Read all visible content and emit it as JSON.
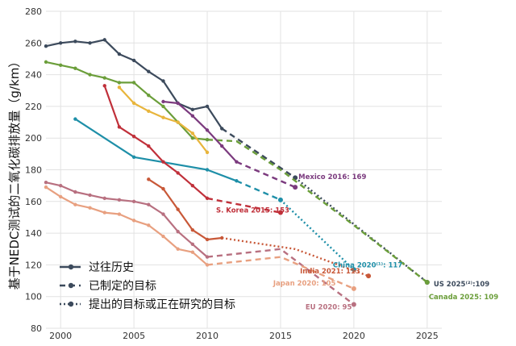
{
  "chart_data": {
    "type": "line",
    "ylabel": "基于NEDC测试的二氧化碳排放量（g/km）",
    "xlim": [
      1999,
      2026
    ],
    "ylim": [
      80,
      280
    ],
    "x_ticks": [
      2000,
      2005,
      2010,
      2015,
      2020,
      2025
    ],
    "y_ticks": [
      80,
      100,
      120,
      140,
      160,
      180,
      200,
      220,
      240,
      260,
      280
    ],
    "grid": true,
    "legend_position": "bottom-left",
    "legend": [
      {
        "label": "过往历史",
        "style": "solid"
      },
      {
        "label": "已制定的目标",
        "style": "dashed"
      },
      {
        "label": "提出的目标或正在研究的目标",
        "style": "dotted"
      }
    ],
    "series": [
      {
        "color": "#3c4a5c",
        "historical": [
          [
            1999,
            258
          ],
          [
            2000,
            260
          ],
          [
            2001,
            261
          ],
          [
            2002,
            260
          ],
          [
            2003,
            262
          ],
          [
            2004,
            253
          ],
          [
            2005,
            249
          ],
          [
            2006,
            242
          ],
          [
            2007,
            236
          ],
          [
            2008,
            222
          ],
          [
            2009,
            218
          ],
          [
            2010,
            220
          ],
          [
            2011,
            206
          ]
        ],
        "enacted": [
          [
            2011,
            206
          ],
          [
            2016,
            175
          ]
        ],
        "proposed": [
          [
            2016,
            175
          ],
          [
            2025,
            109
          ]
        ]
      },
      {
        "color": "#6b9e3a",
        "historical": [
          [
            1999,
            248
          ],
          [
            2000,
            246
          ],
          [
            2001,
            244
          ],
          [
            2002,
            240
          ],
          [
            2003,
            238
          ],
          [
            2004,
            235
          ],
          [
            2005,
            235
          ],
          [
            2006,
            227
          ],
          [
            2007,
            220
          ],
          [
            2008,
            210
          ],
          [
            2009,
            200
          ],
          [
            2010,
            199
          ]
        ],
        "enacted": [
          [
            2010,
            199
          ],
          [
            2012,
            198
          ],
          [
            2015,
            180
          ],
          [
            2020,
            145
          ],
          [
            2025,
            109
          ]
        ]
      },
      {
        "color": "#7b3a7e",
        "historical": [
          [
            2007,
            223
          ],
          [
            2008,
            222
          ],
          [
            2009,
            214
          ],
          [
            2010,
            205
          ],
          [
            2011,
            195
          ],
          [
            2012,
            185
          ]
        ],
        "enacted": [
          [
            2012,
            185
          ],
          [
            2016,
            169
          ]
        ]
      },
      {
        "color": "#e8b53c",
        "historical": [
          [
            2004,
            232
          ],
          [
            2005,
            222
          ],
          [
            2006,
            217
          ],
          [
            2007,
            213
          ],
          [
            2008,
            210
          ],
          [
            2009,
            203
          ],
          [
            2010,
            191
          ]
        ]
      },
      {
        "color": "#1e8fa8",
        "historical": [
          [
            2001,
            212
          ],
          [
            2005,
            188
          ],
          [
            2010,
            180
          ],
          [
            2012,
            173
          ]
        ],
        "enacted": [
          [
            2012,
            173
          ],
          [
            2015,
            161
          ]
        ],
        "proposed": [
          [
            2015,
            161
          ],
          [
            2020,
            117
          ]
        ]
      },
      {
        "color": "#c0303a",
        "historical": [
          [
            2003,
            233
          ],
          [
            2004,
            207
          ],
          [
            2005,
            201
          ],
          [
            2006,
            195
          ],
          [
            2007,
            185
          ],
          [
            2008,
            178
          ],
          [
            2009,
            170
          ],
          [
            2010,
            162
          ]
        ],
        "enacted": [
          [
            2010,
            162
          ],
          [
            2015,
            153
          ]
        ]
      },
      {
        "color": "#c85838",
        "historical": [
          [
            2006,
            174
          ],
          [
            2007,
            168
          ],
          [
            2008,
            155
          ],
          [
            2009,
            142
          ],
          [
            2010,
            136
          ],
          [
            2011,
            137
          ]
        ],
        "proposed": [
          [
            2011,
            137
          ],
          [
            2016,
            130
          ],
          [
            2021,
            113
          ]
        ]
      },
      {
        "color": "#b87080",
        "historical": [
          [
            1999,
            172
          ],
          [
            2000,
            170
          ],
          [
            2001,
            166
          ],
          [
            2002,
            164
          ],
          [
            2003,
            162
          ],
          [
            2004,
            161
          ],
          [
            2005,
            160
          ],
          [
            2006,
            158
          ],
          [
            2007,
            152
          ],
          [
            2008,
            141
          ],
          [
            2009,
            133
          ],
          [
            2010,
            125
          ]
        ],
        "enacted": [
          [
            2010,
            125
          ],
          [
            2015,
            130
          ],
          [
            2020,
            95
          ]
        ]
      },
      {
        "color": "#e8a080",
        "historical": [
          [
            1999,
            169
          ],
          [
            2000,
            163
          ],
          [
            2001,
            158
          ],
          [
            2002,
            156
          ],
          [
            2003,
            153
          ],
          [
            2004,
            152
          ],
          [
            2005,
            148
          ],
          [
            2006,
            145
          ],
          [
            2007,
            138
          ],
          [
            2008,
            130
          ],
          [
            2009,
            128
          ],
          [
            2010,
            120
          ]
        ],
        "enacted": [
          [
            2010,
            120
          ],
          [
            2015,
            125
          ],
          [
            2020,
            105
          ]
        ]
      }
    ],
    "annotations": [
      {
        "text": "Mexico 2016: 169",
        "x": 2016,
        "y": 169,
        "color": "#7b3a7e"
      },
      {
        "text": "China 2020⁽¹⁾: 117",
        "x": 2020,
        "y": 117,
        "color": "#1e8fa8"
      },
      {
        "text": "S. Korea 2015: 153",
        "x": 2015,
        "y": 153,
        "color": "#c0303a"
      },
      {
        "text": "India 2021: 113",
        "x": 2021,
        "y": 113,
        "color": "#c85838"
      },
      {
        "text": "Japan 2020: 105",
        "x": 2020,
        "y": 105,
        "color": "#e8a080"
      },
      {
        "text": "EU 2020: 95",
        "x": 2020,
        "y": 95,
        "color": "#b87080"
      },
      {
        "text": "US 2025⁽²⁾:109",
        "x": 2025,
        "y": 109,
        "color": "#3c4a5c"
      },
      {
        "text": "Canada 2025: 109",
        "x": 2025,
        "y": 109,
        "color": "#6b9e3a"
      }
    ]
  }
}
